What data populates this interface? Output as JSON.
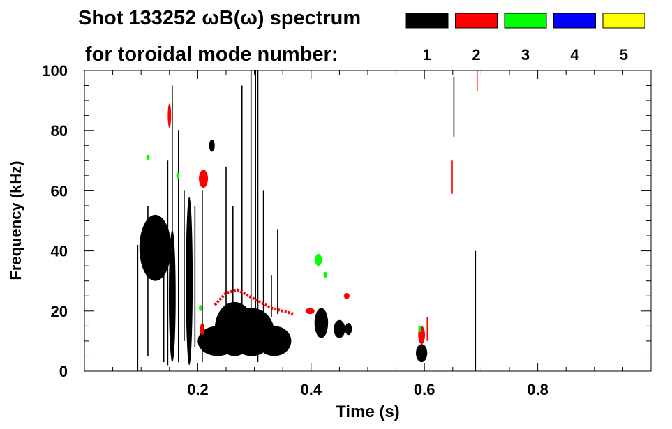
{
  "title_line1": "Shot 133252 ωB(ω) spectrum",
  "title_line2": "for toroidal mode number:",
  "mode_legend": [
    {
      "label": "1",
      "color": "#000000"
    },
    {
      "label": "2",
      "color": "#ff0000"
    },
    {
      "label": "3",
      "color": "#00ff00"
    },
    {
      "label": "4",
      "color": "#0000ff"
    },
    {
      "label": "5",
      "color": "#ffff00"
    }
  ],
  "chart_data": {
    "type": "scatter",
    "xlabel": "Time (s)",
    "ylabel": "Frequency (kHz)",
    "xlim": [
      0.0,
      1.0
    ],
    "ylim": [
      0,
      100
    ],
    "x_ticks": [
      0.2,
      0.4,
      0.6,
      0.8
    ],
    "y_ticks": [
      0,
      20,
      40,
      60,
      80,
      100
    ],
    "grid": false,
    "legend_position": "top-right",
    "series": [
      {
        "name": "1",
        "color": "#000000",
        "blobs": [
          {
            "t": 0.125,
            "f": 41,
            "dt": 0.028,
            "df": 11
          },
          {
            "t": 0.155,
            "f": 25,
            "dt": 0.006,
            "df": 22
          },
          {
            "t": 0.185,
            "f": 30,
            "dt": 0.006,
            "df": 28
          },
          {
            "t": 0.235,
            "f": 10,
            "dt": 0.035,
            "df": 5
          },
          {
            "t": 0.265,
            "f": 14,
            "dt": 0.035,
            "df": 9
          },
          {
            "t": 0.295,
            "f": 13,
            "dt": 0.04,
            "df": 8
          },
          {
            "t": 0.335,
            "f": 10,
            "dt": 0.03,
            "df": 5
          },
          {
            "t": 0.418,
            "f": 16,
            "dt": 0.012,
            "df": 5
          },
          {
            "t": 0.45,
            "f": 14,
            "dt": 0.01,
            "df": 3
          },
          {
            "t": 0.466,
            "f": 14,
            "dt": 0.006,
            "df": 2
          },
          {
            "t": 0.595,
            "f": 6,
            "dt": 0.01,
            "df": 3
          },
          {
            "t": 0.225,
            "f": 75,
            "dt": 0.005,
            "df": 2
          }
        ],
        "streaks": [
          {
            "t": 0.094,
            "f0": 0,
            "f1": 42
          },
          {
            "t": 0.112,
            "f0": 5,
            "f1": 55
          },
          {
            "t": 0.14,
            "f0": 3,
            "f1": 50
          },
          {
            "t": 0.147,
            "f0": 2,
            "f1": 70
          },
          {
            "t": 0.155,
            "f0": 5,
            "f1": 95
          },
          {
            "t": 0.166,
            "f0": 3,
            "f1": 80
          },
          {
            "t": 0.176,
            "f0": 10,
            "f1": 60
          },
          {
            "t": 0.195,
            "f0": 8,
            "f1": 55
          },
          {
            "t": 0.208,
            "f0": 3,
            "f1": 60
          },
          {
            "t": 0.25,
            "f0": 20,
            "f1": 68
          },
          {
            "t": 0.262,
            "f0": 18,
            "f1": 55
          },
          {
            "t": 0.278,
            "f0": 8,
            "f1": 95
          },
          {
            "t": 0.294,
            "f0": 10,
            "f1": 100
          },
          {
            "t": 0.302,
            "f0": 5,
            "f1": 100
          },
          {
            "t": 0.306,
            "f0": 3,
            "f1": 100
          },
          {
            "t": 0.316,
            "f0": 10,
            "f1": 60
          },
          {
            "t": 0.33,
            "f0": 18,
            "f1": 32
          },
          {
            "t": 0.341,
            "f0": 19,
            "f1": 47
          },
          {
            "t": 0.652,
            "f0": 78,
            "f1": 98
          },
          {
            "t": 0.69,
            "f0": 0,
            "f1": 40
          }
        ]
      },
      {
        "name": "2",
        "color": "#ff0000",
        "curve": {
          "t": [
            0.23,
            0.25,
            0.27,
            0.29,
            0.31,
            0.33,
            0.35,
            0.37
          ],
          "f": [
            22,
            26,
            27,
            25,
            23,
            21,
            20,
            19
          ]
        },
        "blobs": [
          {
            "t": 0.21,
            "f": 64,
            "dt": 0.008,
            "df": 3
          },
          {
            "t": 0.15,
            "f": 85,
            "dt": 0.003,
            "df": 4
          },
          {
            "t": 0.595,
            "f": 12,
            "dt": 0.006,
            "df": 3
          },
          {
            "t": 0.398,
            "f": 20,
            "dt": 0.008,
            "df": 1
          },
          {
            "t": 0.463,
            "f": 25,
            "dt": 0.005,
            "df": 1
          },
          {
            "t": 0.208,
            "f": 14,
            "dt": 0.004,
            "df": 2
          }
        ],
        "streaks": [
          {
            "t": 0.649,
            "f0": 59,
            "f1": 70
          },
          {
            "t": 0.693,
            "f0": 93,
            "f1": 100
          },
          {
            "t": 0.605,
            "f0": 10,
            "f1": 18
          }
        ]
      },
      {
        "name": "3",
        "color": "#00ff00",
        "blobs": [
          {
            "t": 0.413,
            "f": 37,
            "dt": 0.006,
            "df": 2
          },
          {
            "t": 0.205,
            "f": 21,
            "dt": 0.003,
            "df": 1
          },
          {
            "t": 0.165,
            "f": 65,
            "dt": 0.003,
            "df": 1
          },
          {
            "t": 0.425,
            "f": 32,
            "dt": 0.003,
            "df": 1
          },
          {
            "t": 0.592,
            "f": 14,
            "dt": 0.003,
            "df": 1
          },
          {
            "t": 0.112,
            "f": 71,
            "dt": 0.003,
            "df": 1
          }
        ],
        "streaks": []
      },
      {
        "name": "4",
        "color": "#0000ff",
        "blobs": [],
        "streaks": []
      },
      {
        "name": "5",
        "color": "#ffff00",
        "blobs": [],
        "streaks": []
      }
    ]
  }
}
